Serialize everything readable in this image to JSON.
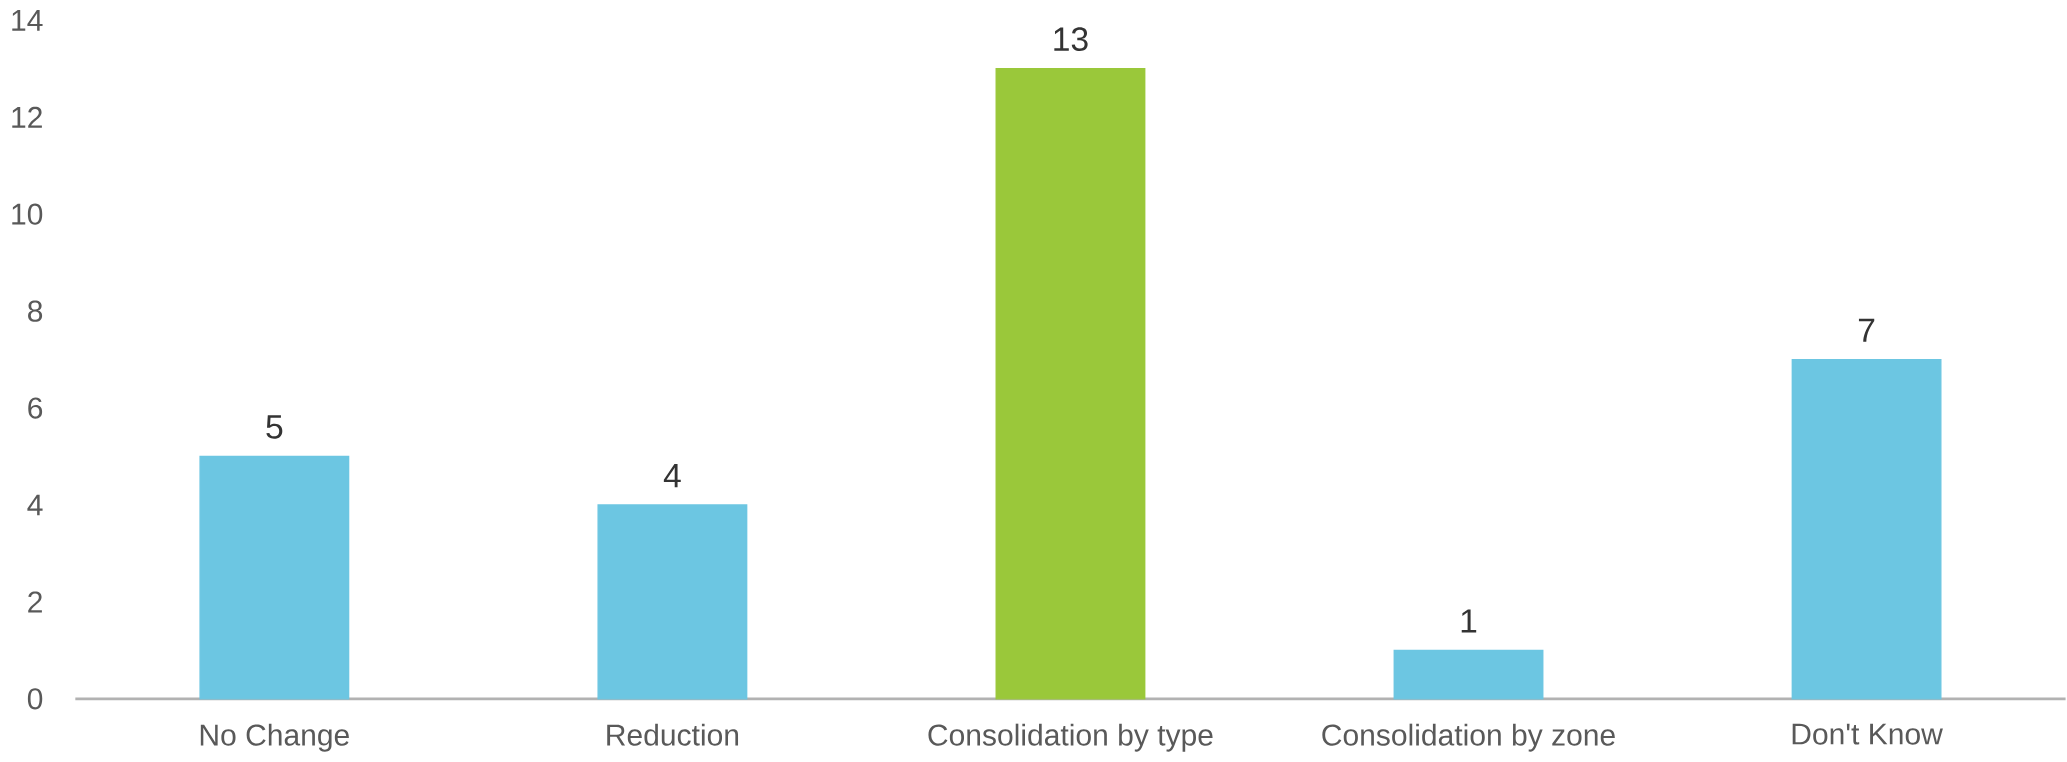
{
  "chart_data": {
    "type": "bar",
    "categories": [
      "No Change",
      "Reduction",
      "Consolidation by type",
      "Consolidation by zone",
      "Don't Know"
    ],
    "values": [
      5,
      4,
      13,
      1,
      7
    ],
    "colors": [
      "#6cc6e2",
      "#6cc6e2",
      "#9ac83a",
      "#6cc6e2",
      "#6cc6e2"
    ],
    "ylim": [
      0,
      14
    ],
    "yticks": [
      0,
      2,
      4,
      6,
      8,
      10,
      12,
      14
    ],
    "data_labels": true
  }
}
